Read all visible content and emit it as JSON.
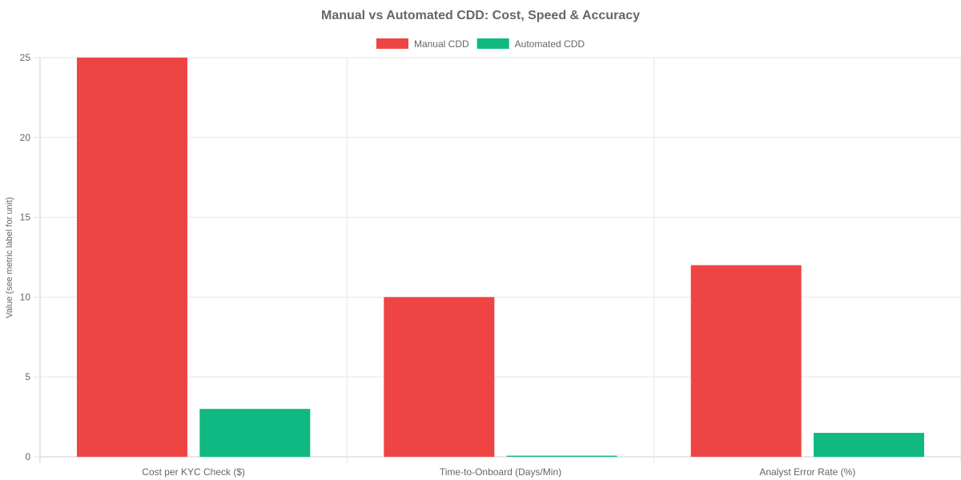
{
  "chart_data": {
    "type": "bar",
    "title": "Manual vs Automated CDD: Cost, Speed & Accuracy",
    "categories": [
      "Cost per KYC Check ($)",
      "Time-to-Onboard (Days/Min)",
      "Analyst Error Rate (%)"
    ],
    "series": [
      {
        "name": "Manual CDD",
        "color": "#ef4444",
        "values": [
          25,
          10,
          12
        ]
      },
      {
        "name": "Automated CDD",
        "color": "#10b981",
        "values": [
          3,
          0.07,
          1.5
        ]
      }
    ],
    "xlabel": "",
    "ylabel": "Value (see metric label for unit)",
    "ylim": [
      0,
      25
    ],
    "yticks": [
      0,
      5,
      10,
      15,
      20,
      25
    ],
    "grid": true,
    "legend": "top-center"
  }
}
